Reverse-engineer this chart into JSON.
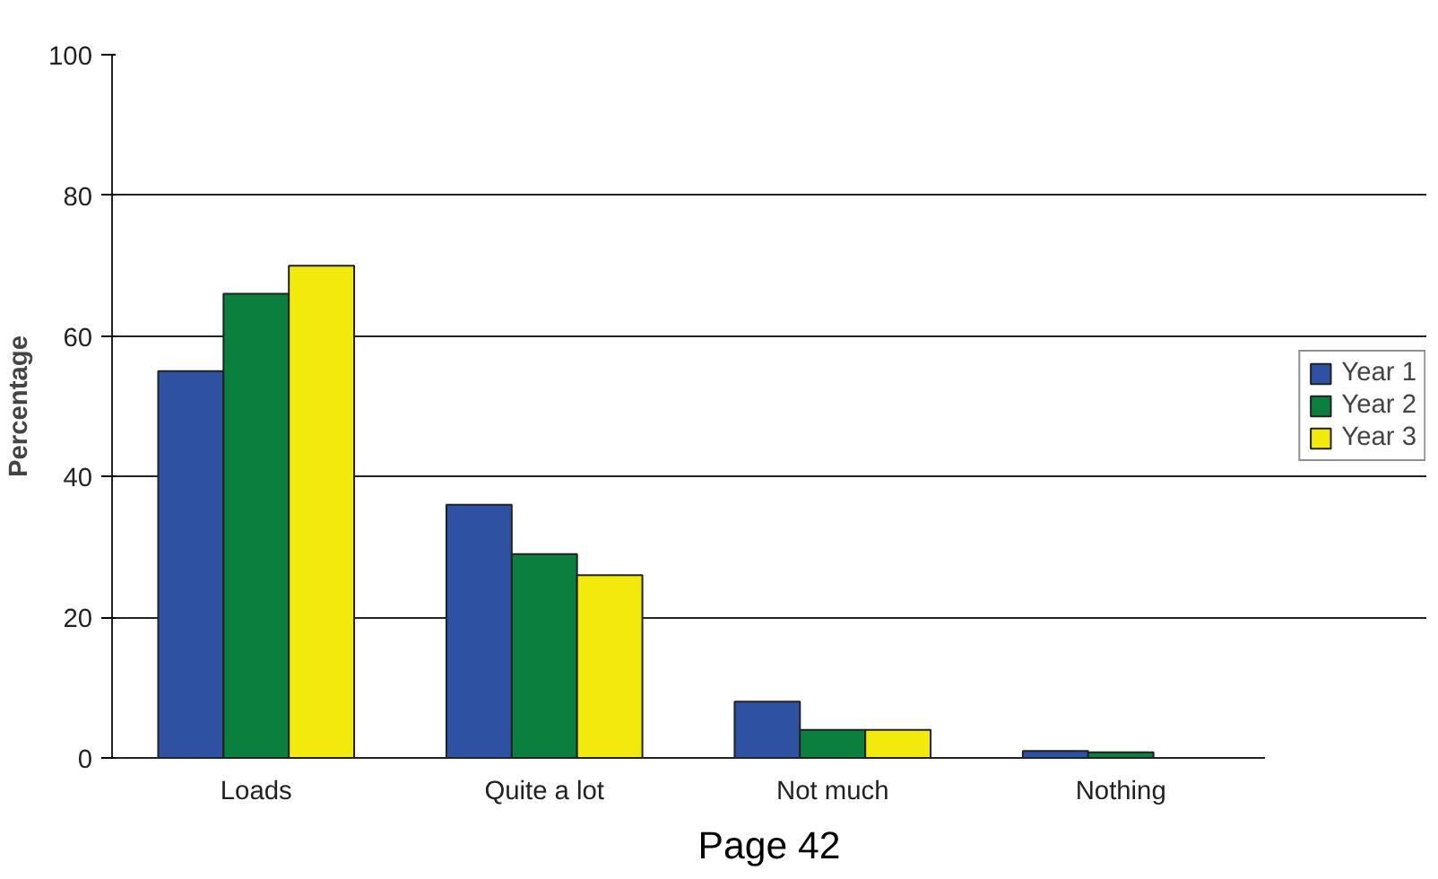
{
  "chart_data": {
    "type": "bar",
    "ylabel": "Percentage",
    "categories": [
      "Loads",
      "Quite a lot",
      "Not much",
      "Nothing"
    ],
    "series": [
      {
        "name": "Year 1",
        "color": "#2e52a1",
        "values": [
          55,
          36,
          8,
          1
        ]
      },
      {
        "name": "Year 2",
        "color": "#0a7f3e",
        "values": [
          66,
          29,
          4,
          0.8
        ]
      },
      {
        "name": "Year 3",
        "color": "#f2ea0c",
        "values": [
          70,
          26,
          4,
          0
        ]
      }
    ],
    "ylim": [
      0,
      100
    ],
    "yticks": [
      0,
      20,
      40,
      60,
      80,
      100
    ],
    "grid": "y",
    "legend": "right",
    "annotations": [
      "Page 42"
    ]
  }
}
